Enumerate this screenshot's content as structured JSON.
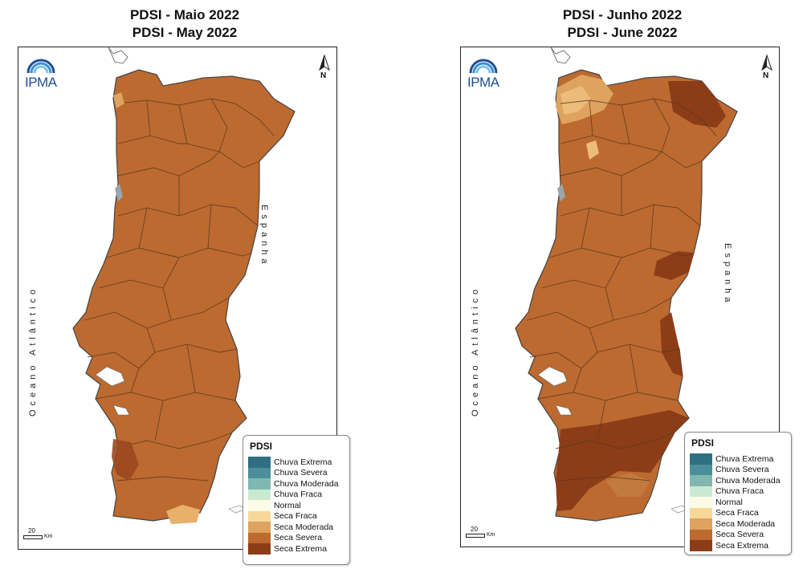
{
  "maps": [
    {
      "title_pt": "PDSI - Maio 2022",
      "title_en": "PDSI - May 2022",
      "logo_text": "IPMA",
      "north_label": "N",
      "ocean_label": "Oceano Atlântico",
      "spain_label": "Espanha",
      "scale_value": "20",
      "scale_unit": "Km",
      "dominant_class": "Seca Severa"
    },
    {
      "title_pt": "PDSI - Junho 2022",
      "title_en": "PDSI - June 2022",
      "logo_text": "IPMA",
      "north_label": "N",
      "ocean_label": "Oceano Atlântico",
      "spain_label": "Espanha",
      "scale_value": "20",
      "scale_unit": "Km",
      "dominant_class": "Seca Severa"
    }
  ],
  "legend": {
    "title": "PDSI",
    "items": [
      {
        "label": "Chuva Extrema",
        "color": "#2f6f82"
      },
      {
        "label": "Chuva Severa",
        "color": "#4a8f9a"
      },
      {
        "label": "Chuva Moderada",
        "color": "#7fb8b0"
      },
      {
        "label": "Chuva Fraca",
        "color": "#c9ead0"
      },
      {
        "label": "Normal",
        "color": "#fbfbe6"
      },
      {
        "label": "Seca Fraca",
        "color": "#f6d99a"
      },
      {
        "label": "Seca Moderada",
        "color": "#dda35f"
      },
      {
        "label": "Seca Severa",
        "color": "#bc6a30"
      },
      {
        "label": "Seca Extrema",
        "color": "#8c3d17"
      }
    ]
  }
}
